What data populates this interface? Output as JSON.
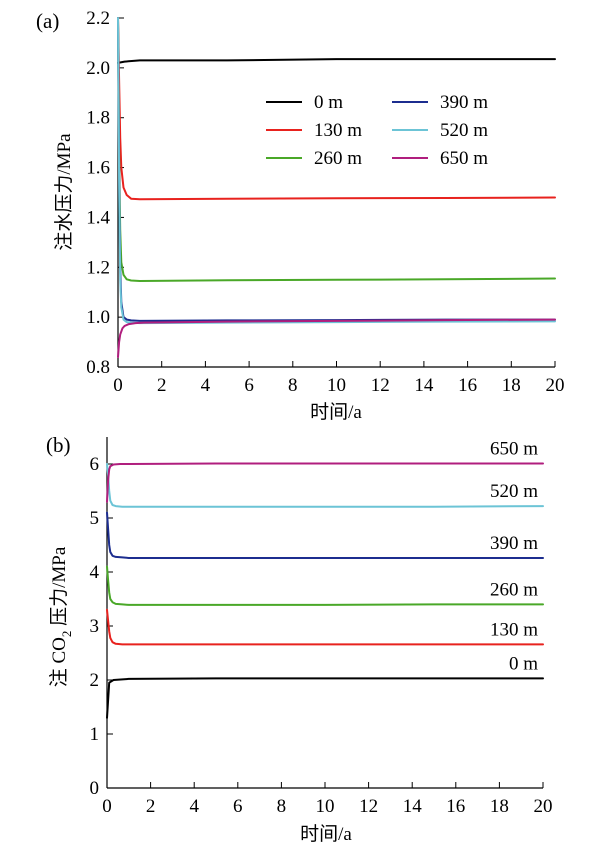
{
  "chart_data": [
    {
      "type": "line",
      "panel_label": "(a)",
      "xlabel": "时间/a",
      "ylabel": "注水压力/MPa",
      "xlim": [
        0,
        20
      ],
      "ylim": [
        0.8,
        2.2
      ],
      "xticks": [
        "0",
        "2",
        "4",
        "6",
        "8",
        "10",
        "12",
        "14",
        "16",
        "18",
        "20"
      ],
      "yticks": [
        "0.8",
        "1.0",
        "1.2",
        "1.4",
        "1.6",
        "1.8",
        "2.0",
        "2.2"
      ],
      "legend_position": "upper-right",
      "series": [
        {
          "name": "0 m",
          "color": "#000000",
          "x": [
            0,
            0.3,
            1,
            5,
            10,
            15,
            20
          ],
          "y": [
            2.02,
            2.025,
            2.03,
            2.03,
            2.035,
            2.035,
            2.035
          ]
        },
        {
          "name": "130 m",
          "color": "#e8221e",
          "x": [
            0,
            0.05,
            0.1,
            0.15,
            0.25,
            0.4,
            0.6,
            1,
            5,
            10,
            15,
            20
          ],
          "y": [
            2.2,
            1.95,
            1.72,
            1.6,
            1.52,
            1.49,
            1.475,
            1.473,
            1.475,
            1.477,
            1.478,
            1.48
          ]
        },
        {
          "name": "260 m",
          "color": "#4aa828",
          "x": [
            0,
            0.05,
            0.1,
            0.15,
            0.25,
            0.4,
            0.6,
            1,
            5,
            10,
            15,
            20
          ],
          "y": [
            2.2,
            1.65,
            1.35,
            1.22,
            1.17,
            1.152,
            1.147,
            1.145,
            1.148,
            1.15,
            1.152,
            1.155
          ]
        },
        {
          "name": "390 m",
          "color": "#1c2d8f",
          "x": [
            0,
            0.05,
            0.1,
            0.15,
            0.25,
            0.4,
            0.6,
            1,
            5,
            10,
            15,
            20
          ],
          "y": [
            2.2,
            1.6,
            1.2,
            1.06,
            1.0,
            0.99,
            0.987,
            0.985,
            0.987,
            0.988,
            0.99,
            0.99
          ]
        },
        {
          "name": "520 m",
          "color": "#6cc4d6",
          "x": [
            0,
            0.05,
            0.1,
            0.15,
            0.25,
            0.4,
            0.6,
            1,
            5,
            10,
            15,
            20
          ],
          "y": [
            2.2,
            1.55,
            1.15,
            1.04,
            0.99,
            0.98,
            0.978,
            0.976,
            0.978,
            0.98,
            0.982,
            0.983
          ]
        },
        {
          "name": "650 m",
          "color": "#b01e7e",
          "x": [
            0,
            0.05,
            0.1,
            0.2,
            0.3,
            0.5,
            0.8,
            1.2,
            5,
            10,
            15,
            20
          ],
          "y": [
            0.84,
            0.9,
            0.93,
            0.955,
            0.965,
            0.972,
            0.976,
            0.978,
            0.982,
            0.985,
            0.988,
            0.99
          ]
        }
      ]
    },
    {
      "type": "line",
      "panel_label": "(b)",
      "xlabel": "时间/a",
      "ylabel_main": "注 CO",
      "ylabel_sub": "2",
      "ylabel_tail": " 压力/MPa",
      "xlim": [
        0,
        20
      ],
      "ylim": [
        0,
        6.5
      ],
      "xticks": [
        "0",
        "2",
        "4",
        "6",
        "8",
        "10",
        "12",
        "14",
        "16",
        "18",
        "20"
      ],
      "yticks": [
        "0",
        "1",
        "2",
        "3",
        "4",
        "5",
        "6"
      ],
      "series_labels_position": "above-right-end",
      "series": [
        {
          "name": "0 m",
          "color": "#000000",
          "x": [
            0,
            0.1,
            0.3,
            1,
            5,
            10,
            15,
            20
          ],
          "y": [
            1.3,
            1.95,
            2.0,
            2.02,
            2.03,
            2.03,
            2.03,
            2.03
          ]
        },
        {
          "name": "130 m",
          "color": "#e8221e",
          "x": [
            0,
            0.05,
            0.1,
            0.15,
            0.25,
            0.4,
            0.7,
            1,
            5,
            10,
            15,
            20
          ],
          "y": [
            3.3,
            3.1,
            2.9,
            2.78,
            2.7,
            2.67,
            2.66,
            2.66,
            2.66,
            2.66,
            2.66,
            2.66
          ]
        },
        {
          "name": "260 m",
          "color": "#4aa828",
          "x": [
            0,
            0.05,
            0.1,
            0.15,
            0.25,
            0.4,
            0.7,
            1,
            5,
            10,
            15,
            20
          ],
          "y": [
            4.1,
            3.85,
            3.62,
            3.5,
            3.44,
            3.41,
            3.4,
            3.39,
            3.39,
            3.39,
            3.4,
            3.4
          ]
        },
        {
          "name": "390 m",
          "color": "#1c2d8f",
          "x": [
            0,
            0.05,
            0.1,
            0.15,
            0.25,
            0.4,
            0.7,
            1,
            5,
            10,
            15,
            20
          ],
          "y": [
            5.1,
            4.8,
            4.5,
            4.37,
            4.3,
            4.28,
            4.27,
            4.26,
            4.26,
            4.26,
            4.26,
            4.26
          ]
        },
        {
          "name": "520 m",
          "color": "#6cc4d6",
          "x": [
            0,
            0.05,
            0.1,
            0.15,
            0.25,
            0.4,
            0.7,
            1,
            5,
            10,
            15,
            20
          ],
          "y": [
            6.0,
            5.8,
            5.5,
            5.32,
            5.24,
            5.22,
            5.21,
            5.21,
            5.21,
            5.21,
            5.21,
            5.22
          ]
        },
        {
          "name": "650 m",
          "color": "#b01e7e",
          "x": [
            0,
            0.05,
            0.1,
            0.15,
            0.3,
            0.6,
            1,
            5,
            10,
            15,
            20
          ],
          "y": [
            5.3,
            5.7,
            5.9,
            5.96,
            5.99,
            6.0,
            6.0,
            6.01,
            6.01,
            6.01,
            6.01
          ]
        }
      ]
    }
  ]
}
